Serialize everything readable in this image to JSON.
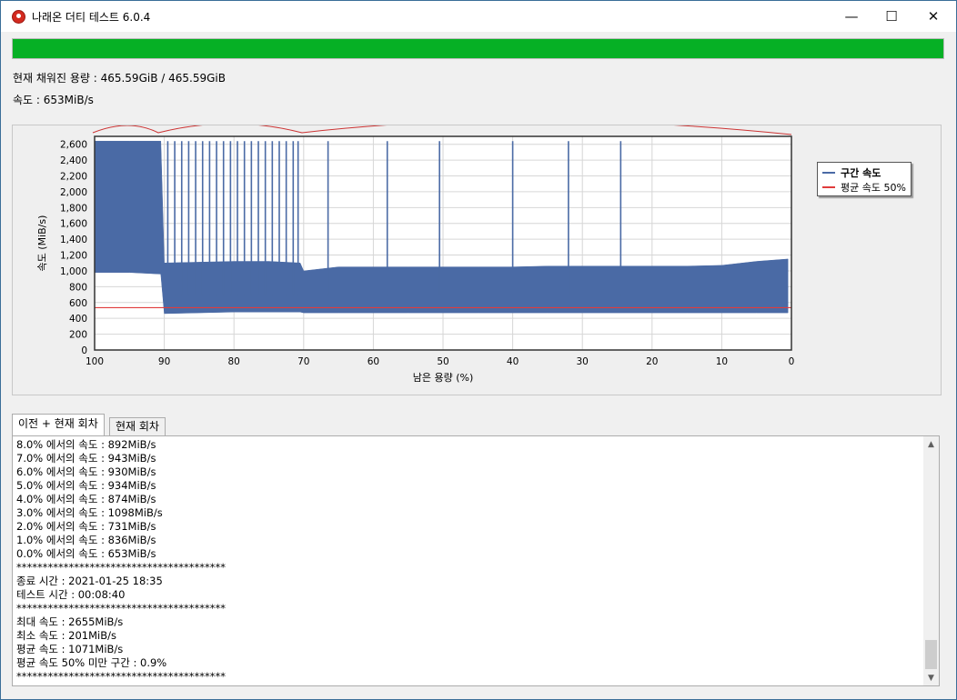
{
  "window": {
    "title": "나래온 더티 테스트 6.0.4",
    "minimize_glyph": "—",
    "maximize_glyph": "☐",
    "close_glyph": "✕",
    "icon": "app-logo-icon"
  },
  "progress": {
    "fraction": 1.0,
    "color": "#06b025"
  },
  "status": {
    "filled": "현재 채워진 용량 : 465.59GiB / 465.59GiB",
    "speed": "속도 : 653MiB/s"
  },
  "legend": {
    "items": [
      {
        "label": "구간 속도",
        "color": "#4a6aa5"
      },
      {
        "label": "평균 속도 50%",
        "color": "#e03c3c"
      }
    ]
  },
  "chart_data": {
    "type": "area",
    "xlabel": "남은 용량 (%)",
    "ylabel": "속도 (MiB/s)",
    "xlim": [
      100,
      0
    ],
    "ylim": [
      0,
      2700
    ],
    "x_ticks": [
      "100",
      "90",
      "80",
      "70",
      "60",
      "50",
      "40",
      "30",
      "20",
      "10",
      "0"
    ],
    "y_ticks": [
      "0",
      "200",
      "400",
      "600",
      "800",
      "1,000",
      "1,200",
      "1,400",
      "1,600",
      "1,800",
      "2,000",
      "2,200",
      "2,400",
      "2,600"
    ],
    "grid": true,
    "legend_position": "right",
    "series": [
      {
        "name": "구간 속도",
        "color": "#4a6aa5",
        "x": [
          100,
          95,
          90.5,
          90,
          85,
          80,
          75,
          70.5,
          70,
          65,
          60,
          55,
          50,
          45,
          40,
          35,
          30,
          25,
          20,
          15,
          10,
          5,
          0.5
        ],
        "low": [
          980,
          980,
          960,
          460,
          470,
          480,
          480,
          480,
          470,
          470,
          470,
          470,
          470,
          470,
          470,
          470,
          470,
          470,
          470,
          470,
          470,
          470,
          470
        ],
        "high": [
          2640,
          2640,
          2640,
          1100,
          1110,
          1120,
          1120,
          1100,
          1000,
          1050,
          1050,
          1050,
          1050,
          1050,
          1050,
          1060,
          1060,
          1060,
          1060,
          1060,
          1070,
          1120,
          1150
        ],
        "spikes": [
          89.5,
          88.5,
          87.5,
          86.5,
          85.5,
          84.5,
          83.5,
          82.5,
          81.5,
          80.5,
          79.5,
          78.5,
          77.5,
          76.5,
          75.5,
          74.5,
          73.5,
          72.5,
          71.5,
          70.8,
          66.5,
          58,
          50.5,
          40,
          32,
          24.5
        ],
        "spike_height": 2640
      },
      {
        "name": "평균 속도 50%",
        "color": "#e03c3c",
        "x": [
          100,
          0
        ],
        "values": [
          535,
          535
        ]
      }
    ]
  },
  "tabs": [
    {
      "label": "이전 + 현재 회차",
      "active": true
    },
    {
      "label": "현재 회차",
      "active": false
    }
  ],
  "log": {
    "lines": [
      "8.0% 에서의 속도 : 892MiB/s",
      "7.0% 에서의 속도 : 943MiB/s",
      "6.0% 에서의 속도 : 930MiB/s",
      "5.0% 에서의 속도 : 934MiB/s",
      "4.0% 에서의 속도 : 874MiB/s",
      "3.0% 에서의 속도 : 1098MiB/s",
      "2.0% 에서의 속도 : 731MiB/s",
      "1.0% 에서의 속도 : 836MiB/s",
      "0.0% 에서의 속도 : 653MiB/s",
      "****************************************",
      "종료 시간 : 2021-01-25 18:35",
      "테스트 시간 : 00:08:40",
      "****************************************",
      "최대 속도 : 2655MiB/s",
      "최소 속도 : 201MiB/s",
      "평균 속도 : 1071MiB/s",
      "평균 속도 50% 미만 구간 : 0.9%",
      "****************************************"
    ],
    "scroll_up_glyph": "▲",
    "scroll_down_glyph": "▼"
  }
}
